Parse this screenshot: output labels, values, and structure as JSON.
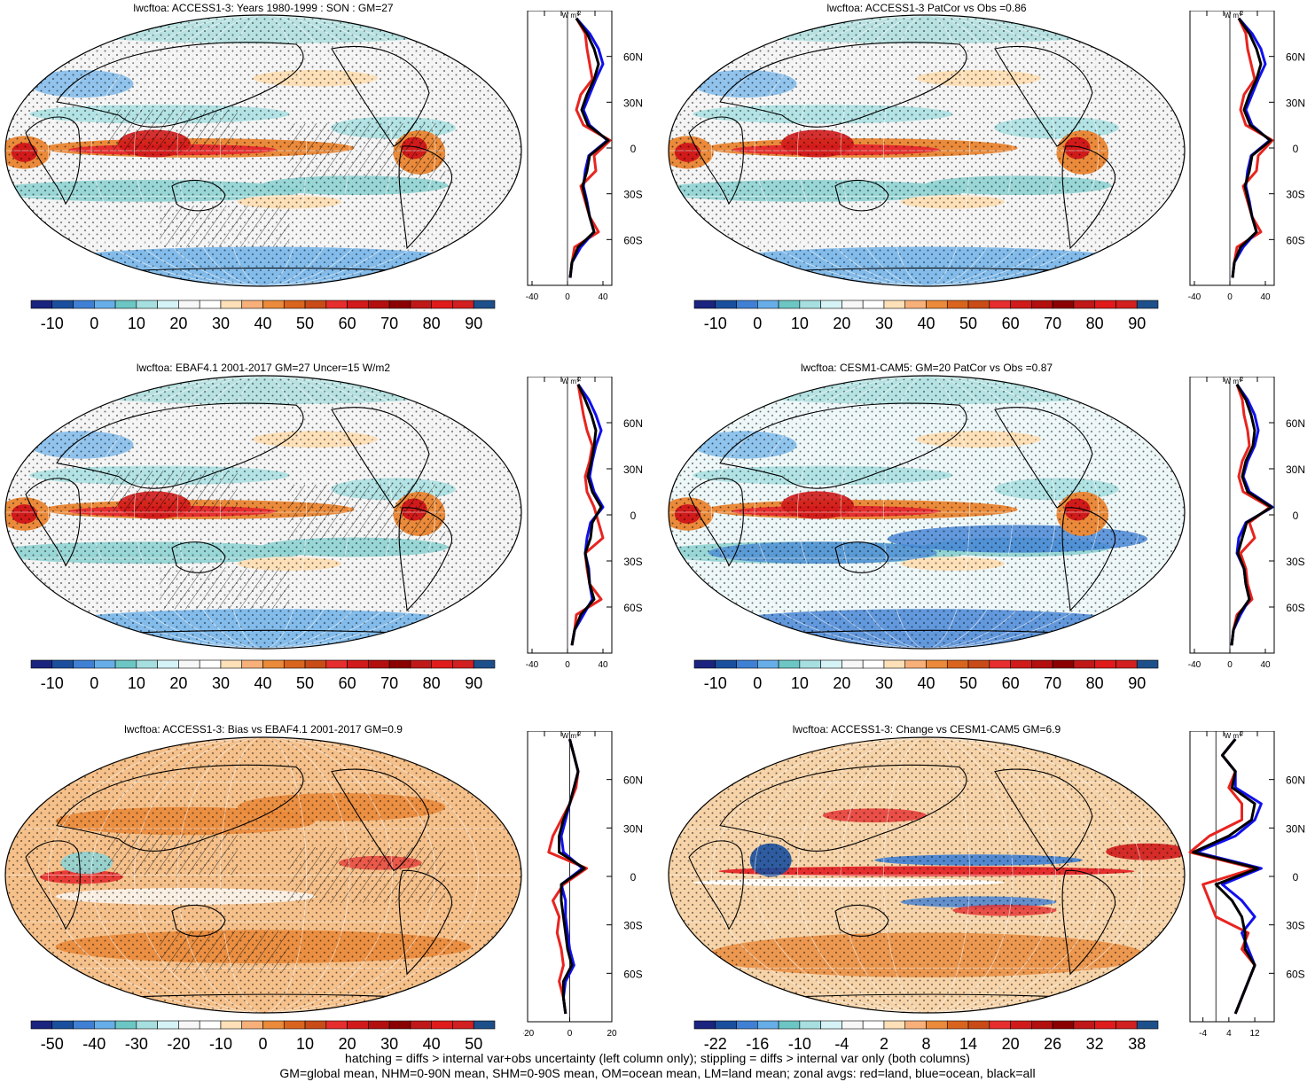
{
  "palette": {
    "main": [
      "#1a237e",
      "#1a4f9e",
      "#3f80d4",
      "#67aee8",
      "#6cc6c4",
      "#a7dfe0",
      "#d5f3f6",
      "#f7f7f7",
      "#ffffff",
      "#fde0b8",
      "#f8b07a",
      "#ea8a3a",
      "#d9641e",
      "#c84b18",
      "#e62e2e",
      "#d11a1a",
      "#b30f0f",
      "#8b0000",
      "#c01818",
      "#e01b1b",
      "#d21f1f",
      "#1d4f8a"
    ],
    "land": "#e8241f",
    "ocean": "#1010ee",
    "all": "#000000"
  },
  "panels": [
    {
      "id": "access-climatology",
      "title": "lwcftoa: ACCESS1-3: Years 1980-1999 : SON : GM=27",
      "pattern": "clim",
      "hatch": true,
      "colorbar_labels": [
        "-10",
        "0",
        "10",
        "20",
        "30",
        "40",
        "50",
        "60",
        "70",
        "80",
        "90"
      ],
      "profile": {
        "units": "W m",
        "units_sup": "-2",
        "lat_labels": [
          "60N",
          "30N",
          "0",
          "30S",
          "60S"
        ],
        "x_ticks": [
          "-40",
          "0",
          "40"
        ],
        "xlim": [
          -45,
          50
        ]
      }
    },
    {
      "id": "access-patcor",
      "title": "lwcftoa: ACCESS1-3 PatCor vs Obs =0.86",
      "pattern": "clim",
      "hatch": false,
      "colorbar_labels": [
        "-10",
        "0",
        "10",
        "20",
        "30",
        "40",
        "50",
        "60",
        "70",
        "80",
        "90"
      ],
      "profile": {
        "units": "W m",
        "units_sup": "-2",
        "lat_labels": [
          "60N",
          "30N",
          "0",
          "30S",
          "60S"
        ],
        "x_ticks": [
          "-40",
          "0",
          "40"
        ],
        "xlim": [
          -45,
          50
        ]
      }
    },
    {
      "id": "ebaf-obs",
      "title": "lwcftoa: EBAF4.1 2001-2017 GM=27 Uncer=15 W/m2",
      "pattern": "clim",
      "hatch": true,
      "colorbar_labels": [
        "-10",
        "0",
        "10",
        "20",
        "30",
        "40",
        "50",
        "60",
        "70",
        "80",
        "90"
      ],
      "profile": {
        "units": "W m",
        "units_sup": "-2",
        "lat_labels": [
          "60N",
          "30N",
          "0",
          "30S",
          "60S"
        ],
        "x_ticks": [
          "-40",
          "0",
          "40"
        ],
        "xlim": [
          -45,
          50
        ]
      }
    },
    {
      "id": "cesm-climatology",
      "title": "lwcftoa: CESM1-CAM5: GM=20 PatCor vs Obs =0.87",
      "pattern": "cesm",
      "hatch": false,
      "colorbar_labels": [
        "-10",
        "0",
        "10",
        "20",
        "30",
        "40",
        "50",
        "60",
        "70",
        "80",
        "90"
      ],
      "profile": {
        "units": "W m",
        "units_sup": "-2",
        "lat_labels": [
          "60N",
          "30N",
          "0",
          "30S",
          "60S"
        ],
        "x_ticks": [
          "-40",
          "0",
          "40"
        ],
        "xlim": [
          -45,
          50
        ]
      }
    },
    {
      "id": "access-bias",
      "title": "lwcftoa: ACCESS1-3: Bias vs EBAF4.1 2001-2017  GM=0.9",
      "pattern": "bias",
      "hatch": true,
      "colorbar_labels": [
        "-50",
        "-40",
        "-30",
        "-20",
        "-10",
        "0",
        "10",
        "20",
        "30",
        "40",
        "50"
      ],
      "profile": {
        "units": "W m",
        "units_sup": "-2",
        "lat_labels": [
          "60N",
          "30N",
          "0",
          "30S",
          "60S"
        ],
        "x_ticks": [
          "-20",
          "0",
          "20"
        ],
        "xlim": [
          -20,
          20
        ]
      }
    },
    {
      "id": "access-change",
      "title": "lwcftoa: ACCESS1-3: Change vs CESM1-CAM5 GM=6.9",
      "pattern": "change",
      "hatch": false,
      "colorbar_labels": [
        "-22",
        "-16",
        "-10",
        "-4",
        "2",
        "8",
        "14",
        "20",
        "26",
        "32",
        "38"
      ],
      "profile": {
        "units": "W m",
        "units_sup": "-2",
        "lat_labels": [
          "60N",
          "30N",
          "0",
          "30S",
          "60S"
        ],
        "x_ticks": [
          "-4",
          "4",
          "12"
        ],
        "xlim": [
          -8,
          18
        ]
      }
    }
  ],
  "footer": {
    "line1": "hatching = diffs > internal var+obs uncertainty (left column only); stippling = diffs > internal var only (both columns)",
    "line2": "GM=global mean, NHM=0-90N mean, SHM=0-90S mean, OM=ocean mean, LM=land mean; zonal avgs: red=land, blue=ocean, black=all"
  },
  "chart_data": [
    {
      "type": "line",
      "title": "lwcftoa: ACCESS1-3: Years 1980-1999 : SON : GM=27",
      "xlabel": "W m-2",
      "ylabel": "",
      "x_ticks": [
        -40,
        0,
        40
      ],
      "y_ticks": [
        "60N",
        "30N",
        "0",
        "30S",
        "60S"
      ],
      "ylim": [
        -90,
        90
      ],
      "series": [
        {
          "name": "land",
          "lat": [
            -85,
            -75,
            -65,
            -55,
            -45,
            -35,
            -25,
            -15,
            -5,
            5,
            15,
            25,
            35,
            45,
            55,
            65,
            75,
            85
          ],
          "values": [
            3,
            5,
            8,
            35,
            25,
            20,
            15,
            32,
            30,
            48,
            18,
            10,
            15,
            28,
            25,
            22,
            20,
            10
          ]
        },
        {
          "name": "ocean",
          "lat": [
            -85,
            -75,
            -65,
            -55,
            -45,
            -35,
            -25,
            -15,
            -5,
            5,
            15,
            25,
            35,
            45,
            55,
            65,
            75,
            85
          ],
          "values": [
            3,
            5,
            15,
            30,
            25,
            22,
            18,
            20,
            24,
            45,
            25,
            18,
            25,
            32,
            40,
            35,
            25,
            10
          ]
        },
        {
          "name": "all",
          "lat": [
            -85,
            -75,
            -65,
            -55,
            -45,
            -35,
            -25,
            -15,
            -5,
            5,
            15,
            25,
            35,
            45,
            55,
            65,
            75,
            85
          ],
          "values": [
            3,
            5,
            12,
            30,
            25,
            21,
            17,
            22,
            25,
            46,
            23,
            16,
            22,
            30,
            35,
            30,
            22,
            10
          ]
        }
      ]
    },
    {
      "type": "line",
      "title": "lwcftoa: ACCESS1-3 PatCor vs Obs =0.86",
      "xlabel": "W m-2",
      "ylabel": "",
      "x_ticks": [
        -40,
        0,
        40
      ],
      "y_ticks": [
        "60N",
        "30N",
        "0",
        "30S",
        "60S"
      ],
      "ylim": [
        -90,
        90
      ],
      "series": [
        {
          "name": "land",
          "lat": [
            -85,
            -75,
            -65,
            -55,
            -45,
            -35,
            -25,
            -15,
            -5,
            5,
            15,
            25,
            35,
            45,
            55,
            65,
            75,
            85
          ],
          "values": [
            3,
            5,
            8,
            35,
            25,
            20,
            15,
            30,
            32,
            48,
            18,
            12,
            16,
            28,
            24,
            20,
            18,
            10
          ]
        },
        {
          "name": "ocean",
          "lat": [
            -85,
            -75,
            -65,
            -55,
            -45,
            -35,
            -25,
            -15,
            -5,
            5,
            15,
            25,
            35,
            45,
            55,
            65,
            75,
            85
          ],
          "values": [
            3,
            5,
            15,
            30,
            25,
            22,
            18,
            20,
            24,
            45,
            25,
            18,
            25,
            32,
            40,
            35,
            25,
            10
          ]
        },
        {
          "name": "all",
          "lat": [
            -85,
            -75,
            -65,
            -55,
            -45,
            -35,
            -25,
            -15,
            -5,
            5,
            15,
            25,
            35,
            45,
            55,
            65,
            75,
            85
          ],
          "values": [
            3,
            5,
            12,
            30,
            25,
            21,
            17,
            22,
            25,
            46,
            23,
            16,
            22,
            30,
            35,
            30,
            22,
            10
          ]
        }
      ]
    },
    {
      "type": "line",
      "title": "lwcftoa: EBAF4.1 2001-2017 GM=27 Uncer=15 W/m2",
      "xlabel": "W m-2",
      "ylabel": "",
      "x_ticks": [
        -40,
        0,
        40
      ],
      "y_ticks": [
        "60N",
        "30N",
        "0",
        "30S",
        "60S"
      ],
      "ylim": [
        -90,
        90
      ],
      "series": [
        {
          "name": "land",
          "lat": [
            -85,
            -75,
            -65,
            -55,
            -45,
            -35,
            -25,
            -15,
            -5,
            5,
            15,
            25,
            35,
            45,
            55,
            65,
            75,
            85
          ],
          "values": [
            5,
            8,
            10,
            38,
            25,
            22,
            20,
            40,
            35,
            30,
            22,
            20,
            25,
            28,
            22,
            18,
            15,
            12
          ]
        },
        {
          "name": "ocean",
          "lat": [
            -85,
            -75,
            -65,
            -55,
            -45,
            -35,
            -25,
            -15,
            -5,
            5,
            15,
            25,
            35,
            45,
            55,
            65,
            75,
            85
          ],
          "values": [
            5,
            8,
            18,
            28,
            25,
            24,
            20,
            22,
            26,
            40,
            30,
            25,
            28,
            32,
            38,
            32,
            24,
            12
          ]
        },
        {
          "name": "all",
          "lat": [
            -85,
            -75,
            -65,
            -55,
            -45,
            -35,
            -25,
            -15,
            -5,
            5,
            15,
            25,
            35,
            45,
            55,
            65,
            75,
            85
          ],
          "values": [
            5,
            8,
            15,
            30,
            25,
            23,
            20,
            26,
            28,
            38,
            28,
            23,
            27,
            30,
            32,
            27,
            20,
            12
          ]
        }
      ]
    },
    {
      "type": "line",
      "title": "lwcftoa: CESM1-CAM5: GM=20 PatCor vs Obs =0.87",
      "xlabel": "W m-2",
      "ylabel": "",
      "x_ticks": [
        -40,
        0,
        40
      ],
      "y_ticks": [
        "60N",
        "30N",
        "0",
        "30S",
        "60S"
      ],
      "ylim": [
        -90,
        90
      ],
      "series": [
        {
          "name": "land",
          "lat": [
            -85,
            -75,
            -65,
            -55,
            -45,
            -35,
            -25,
            -15,
            -5,
            5,
            15,
            25,
            35,
            45,
            55,
            65,
            75,
            85
          ],
          "values": [
            2,
            4,
            8,
            25,
            20,
            18,
            12,
            28,
            22,
            45,
            15,
            10,
            14,
            22,
            20,
            16,
            14,
            8
          ]
        },
        {
          "name": "ocean",
          "lat": [
            -85,
            -75,
            -65,
            -55,
            -45,
            -35,
            -25,
            -15,
            -5,
            5,
            15,
            25,
            35,
            45,
            55,
            65,
            75,
            85
          ],
          "values": [
            2,
            4,
            12,
            22,
            18,
            16,
            8,
            10,
            18,
            48,
            22,
            15,
            20,
            28,
            32,
            28,
            20,
            8
          ]
        },
        {
          "name": "all",
          "lat": [
            -85,
            -75,
            -65,
            -55,
            -45,
            -35,
            -25,
            -15,
            -5,
            5,
            15,
            25,
            35,
            45,
            55,
            65,
            75,
            85
          ],
          "values": [
            2,
            4,
            10,
            22,
            18,
            16,
            9,
            14,
            19,
            47,
            20,
            14,
            18,
            26,
            28,
            24,
            18,
            8
          ]
        }
      ]
    },
    {
      "type": "line",
      "title": "lwcftoa: ACCESS1-3: Bias vs EBAF4.1 2001-2017  GM=0.9",
      "xlabel": "W m-2",
      "ylabel": "",
      "x_ticks": [
        -20,
        0,
        20
      ],
      "y_ticks": [
        "60N",
        "30N",
        "0",
        "30S",
        "60S"
      ],
      "ylim": [
        -90,
        90
      ],
      "series": [
        {
          "name": "land",
          "lat": [
            -85,
            -75,
            -65,
            -55,
            -45,
            -35,
            -25,
            -15,
            -5,
            5,
            15,
            25,
            35,
            45,
            55,
            65,
            75,
            85
          ],
          "values": [
            -2,
            -3,
            -5,
            -3,
            -4,
            -6,
            -5,
            -8,
            -3,
            8,
            -10,
            -8,
            -4,
            0,
            3,
            4,
            2,
            0
          ]
        },
        {
          "name": "ocean",
          "lat": [
            -85,
            -75,
            -65,
            -55,
            -45,
            -35,
            -25,
            -15,
            -5,
            5,
            15,
            25,
            35,
            45,
            55,
            65,
            75,
            85
          ],
          "values": [
            -2,
            -3,
            -2,
            2,
            0,
            -1,
            -2,
            -2,
            -4,
            6,
            -3,
            -4,
            -2,
            0,
            2,
            4,
            2,
            0
          ]
        },
        {
          "name": "all",
          "lat": [
            -85,
            -75,
            -65,
            -55,
            -45,
            -35,
            -25,
            -15,
            -5,
            5,
            15,
            25,
            35,
            45,
            55,
            65,
            75,
            85
          ],
          "values": [
            -2,
            -3,
            -3,
            1,
            -1,
            -2,
            -3,
            -4,
            -4,
            7,
            -5,
            -5,
            -3,
            0,
            2,
            4,
            2,
            0
          ]
        }
      ]
    },
    {
      "type": "line",
      "title": "lwcftoa: ACCESS1-3: Change vs CESM1-CAM5 GM=6.9",
      "xlabel": "W m-2",
      "ylabel": "",
      "x_ticks": [
        -4,
        4,
        12
      ],
      "y_ticks": [
        "60N",
        "30N",
        "0",
        "30S",
        "60S"
      ],
      "ylim": [
        -90,
        90
      ],
      "series": [
        {
          "name": "land",
          "lat": [
            -85,
            -75,
            -65,
            -55,
            -45,
            -35,
            -25,
            -15,
            -5,
            5,
            15,
            25,
            35,
            45,
            55,
            65,
            75,
            85
          ],
          "values": [
            6,
            8,
            10,
            12,
            8,
            10,
            0,
            -2,
            -4,
            12,
            -8,
            -2,
            8,
            8,
            4,
            6,
            2,
            6
          ]
        },
        {
          "name": "ocean",
          "lat": [
            -85,
            -75,
            -65,
            -55,
            -45,
            -35,
            -25,
            -15,
            -5,
            5,
            15,
            25,
            35,
            45,
            55,
            65,
            75,
            85
          ],
          "values": [
            6,
            8,
            10,
            12,
            10,
            8,
            12,
            8,
            2,
            14,
            -6,
            6,
            12,
            14,
            6,
            6,
            2,
            6
          ]
        },
        {
          "name": "all",
          "lat": [
            -85,
            -75,
            -65,
            -55,
            -45,
            -35,
            -25,
            -15,
            -5,
            5,
            15,
            25,
            35,
            45,
            55,
            65,
            75,
            85
          ],
          "values": [
            6,
            8,
            10,
            12,
            9,
            9,
            8,
            5,
            0,
            13,
            -7,
            4,
            11,
            12,
            5,
            6,
            2,
            6
          ]
        }
      ]
    }
  ]
}
